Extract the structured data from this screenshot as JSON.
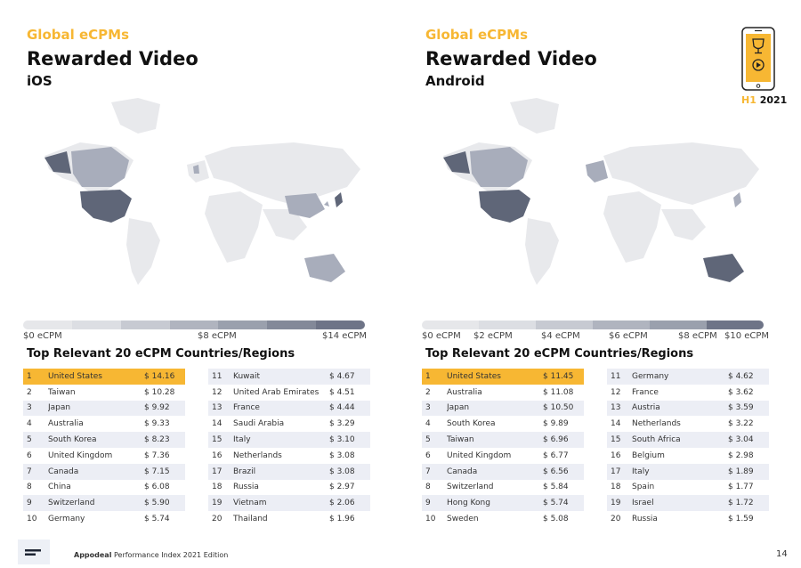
{
  "colors": {
    "accent": "#f7b733",
    "map_dark": "#5f6678",
    "map_mid": "#a8adbb",
    "map_light": "#e8e9ec"
  },
  "left": {
    "kicker": "Global eCPMs",
    "title": "Rewarded Video",
    "platform": "iOS",
    "scale_labels": [
      "$0 eCPM",
      "$8 eCPM",
      "$14 eCPM"
    ],
    "section": "Top Relevant 20 eCPM Countries/Regions",
    "rows": [
      {
        "rank": "1",
        "country": "United States",
        "value": "$ 14.16"
      },
      {
        "rank": "2",
        "country": "Taiwan",
        "value": "$ 10.28"
      },
      {
        "rank": "3",
        "country": "Japan",
        "value": "$ 9.92"
      },
      {
        "rank": "4",
        "country": "Australia",
        "value": "$ 9.33"
      },
      {
        "rank": "5",
        "country": "South Korea",
        "value": "$ 8.23"
      },
      {
        "rank": "6",
        "country": "United Kingdom",
        "value": "$ 7.36"
      },
      {
        "rank": "7",
        "country": "Canada",
        "value": "$ 7.15"
      },
      {
        "rank": "8",
        "country": "China",
        "value": "$ 6.08"
      },
      {
        "rank": "9",
        "country": "Switzerland",
        "value": "$ 5.90"
      },
      {
        "rank": "10",
        "country": "Germany",
        "value": "$ 5.74"
      },
      {
        "rank": "11",
        "country": "Kuwait",
        "value": "$ 4.67"
      },
      {
        "rank": "12",
        "country": "United Arab Emirates",
        "value": "$ 4.51"
      },
      {
        "rank": "13",
        "country": "France",
        "value": "$ 4.44"
      },
      {
        "rank": "14",
        "country": "Saudi Arabia",
        "value": "$ 3.29"
      },
      {
        "rank": "15",
        "country": "Italy",
        "value": "$ 3.10"
      },
      {
        "rank": "16",
        "country": "Netherlands",
        "value": "$ 3.08"
      },
      {
        "rank": "17",
        "country": "Brazil",
        "value": "$ 3.08"
      },
      {
        "rank": "18",
        "country": "Russia",
        "value": "$ 2.97"
      },
      {
        "rank": "19",
        "country": "Vietnam",
        "value": "$ 2.06"
      },
      {
        "rank": "20",
        "country": "Thailand",
        "value": "$ 1.96"
      }
    ]
  },
  "right": {
    "kicker": "Global eCPMs",
    "title": "Rewarded Video",
    "platform": "Android",
    "scale_labels": [
      "$0 eCPM",
      "$2 eCPM",
      "$4 eCPM",
      "$6 eCPM",
      "$8 eCPM",
      "$10 eCPM"
    ],
    "section": "Top Relevant 20 eCPM Countries/Regions",
    "rows": [
      {
        "rank": "1",
        "country": "United States",
        "value": "$ 11.45"
      },
      {
        "rank": "2",
        "country": "Australia",
        "value": "$ 11.08"
      },
      {
        "rank": "3",
        "country": "Japan",
        "value": "$ 10.50"
      },
      {
        "rank": "4",
        "country": "South Korea",
        "value": "$ 9.89"
      },
      {
        "rank": "5",
        "country": "Taiwan",
        "value": "$ 6.96"
      },
      {
        "rank": "6",
        "country": "United Kingdom",
        "value": "$ 6.77"
      },
      {
        "rank": "7",
        "country": "Canada",
        "value": "$ 6.56"
      },
      {
        "rank": "8",
        "country": "Switzerland",
        "value": "$ 5.84"
      },
      {
        "rank": "9",
        "country": "Hong Kong",
        "value": "$ 5.74"
      },
      {
        "rank": "10",
        "country": "Sweden",
        "value": "$ 5.08"
      },
      {
        "rank": "11",
        "country": "Germany",
        "value": "$ 4.62"
      },
      {
        "rank": "12",
        "country": "France",
        "value": "$ 3.62"
      },
      {
        "rank": "13",
        "country": "Austria",
        "value": "$ 3.59"
      },
      {
        "rank": "14",
        "country": "Netherlands",
        "value": "$ 3.22"
      },
      {
        "rank": "15",
        "country": "South Africa",
        "value": "$ 3.04"
      },
      {
        "rank": "16",
        "country": "Belgium",
        "value": "$ 2.98"
      },
      {
        "rank": "17",
        "country": "Italy",
        "value": "$ 1.89"
      },
      {
        "rank": "18",
        "country": "Spain",
        "value": "$ 1.77"
      },
      {
        "rank": "19",
        "country": "Israel",
        "value": "$ 1.72"
      },
      {
        "rank": "20",
        "country": "Russia",
        "value": "$ 1.59"
      }
    ]
  },
  "badge": {
    "icon": "trophy-play-phone-icon",
    "half": "H1",
    "year": "2021"
  },
  "footer": {
    "brand": "Appodeal",
    "text": "Performance Index 2021 Edition",
    "page": "14"
  }
}
